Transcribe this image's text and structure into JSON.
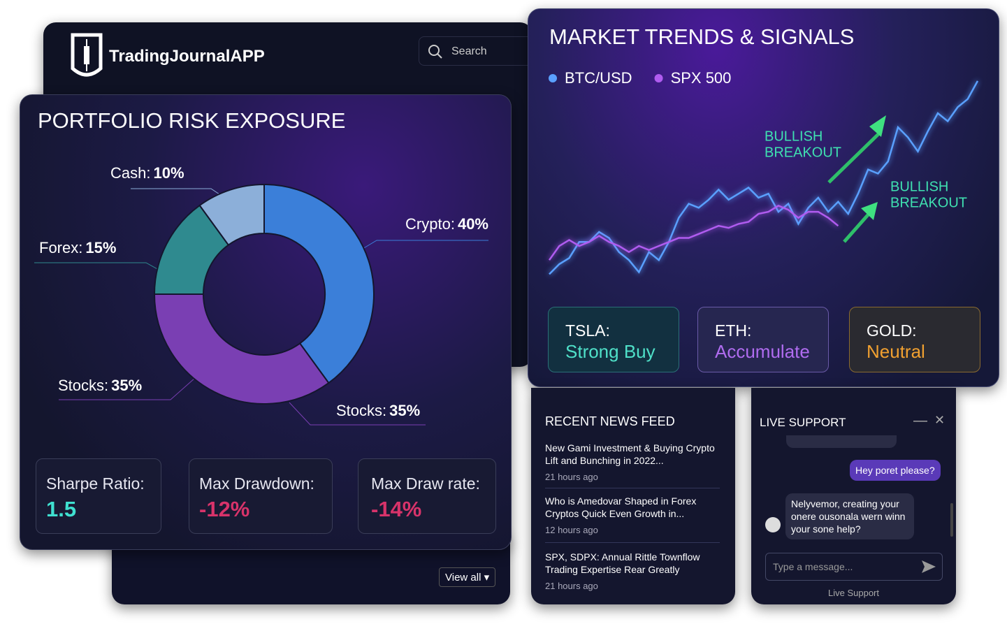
{
  "app": {
    "title": "TradingJournalAPP",
    "search_placeholder": "Search",
    "view_all": "View all"
  },
  "chart_data": [
    {
      "type": "pie",
      "title": "PORTFOLIO RISK EXPOSURE",
      "categories": [
        "Crypto:",
        "Stocks:",
        "Forex:",
        "Cash:"
      ],
      "values": [
        40,
        35,
        15,
        10
      ],
      "value_labels": [
        "40%",
        "35%",
        "15%",
        "10%"
      ],
      "colors": [
        "#3b7fd9",
        "#7a3fb3",
        "#2f8a8f",
        "#8cafd9"
      ]
    },
    {
      "type": "line",
      "title": "MARKET TRENDS & SIGNALS",
      "ylim": [
        0,
        100
      ],
      "series": [
        {
          "name": "BTC/USD",
          "color": "#5aa0ff",
          "values": [
            3,
            8,
            11,
            19,
            19,
            24,
            21,
            14,
            10,
            4,
            14,
            10,
            19,
            31,
            38,
            36,
            40,
            45,
            40,
            43,
            46,
            41,
            43,
            34,
            38,
            28,
            36,
            41,
            34,
            39,
            33,
            43,
            55,
            53,
            59,
            76,
            71,
            64,
            74,
            83,
            79,
            86,
            90,
            99
          ]
        },
        {
          "name": "SPX 500",
          "color": "#b05cf0",
          "values": [
            10,
            17,
            20,
            17,
            19,
            22,
            19,
            17,
            14,
            17,
            15,
            17,
            19,
            21,
            21,
            23,
            25,
            27,
            26,
            28,
            29,
            33,
            34,
            37,
            35,
            31,
            34,
            34,
            31,
            27,
            null,
            null,
            null,
            null,
            null,
            null,
            null,
            null,
            null,
            null,
            null,
            null,
            null,
            null
          ]
        }
      ],
      "annotations": [
        [
          "BULLISH",
          "BREAKOUT"
        ],
        [
          "BULLISH",
          "BREAKOUT"
        ]
      ]
    }
  ],
  "portfolio_metrics": [
    {
      "label": "Sharpe Ratio:",
      "value": "1.5"
    },
    {
      "label": "Max Drawdown:",
      "value": "-12%"
    },
    {
      "label": "Max Draw rate:",
      "value": "-14%"
    }
  ],
  "signals": [
    {
      "ticker": "TSLA:",
      "signal": "Strong Buy"
    },
    {
      "ticker": "ETH:",
      "signal": "Accumulate"
    },
    {
      "ticker": "GOLD:",
      "signal": "Neutral"
    }
  ],
  "news": {
    "title": "RECENT NEWS FEED",
    "items": [
      {
        "headline": "New Gami Investment & Buying Crypto Lift and Bunching in 2022...",
        "time": "21 hours ago"
      },
      {
        "headline": "Who is Amedovar Shaped in Forex Cryptos Quick Even Growth in...",
        "time": "12 hours ago"
      },
      {
        "headline": "SPX, SDPX: Annual Rittle Townflow Trading Expertise Rear Greatly",
        "time": "21 hours ago"
      }
    ]
  },
  "chat": {
    "title": "LIVE SUPPORT",
    "messages": [
      "Hey poret please?",
      "Nelyvemor, creating your onere ousonala wern winn your sone help?"
    ],
    "input_placeholder": "Type a message...",
    "footer": "Live Support"
  }
}
